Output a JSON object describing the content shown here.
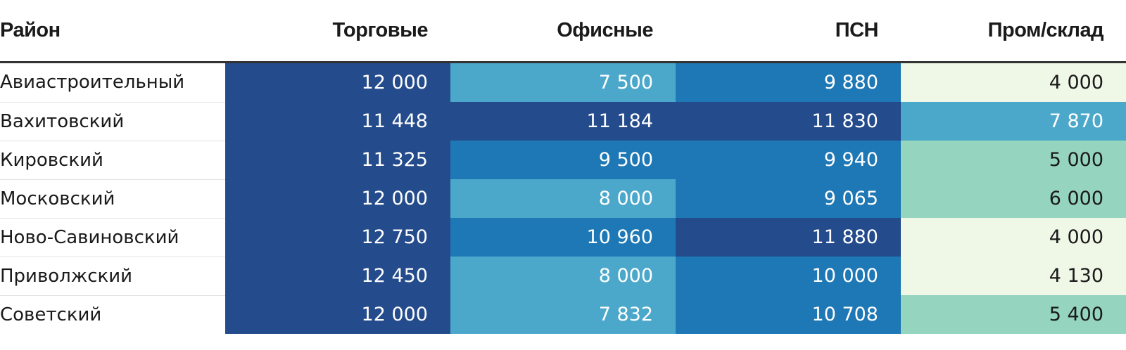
{
  "chart_data": {
    "type": "table",
    "columns": [
      "Район",
      "Торговые",
      "Офисные",
      "ПСН",
      "Пром/склад"
    ],
    "rows": [
      {
        "district": "Авиастроительный",
        "values": [
          "12 000",
          "7 500",
          "9 880",
          "4 000"
        ],
        "numbers": [
          12000,
          7500,
          9880,
          4000
        ]
      },
      {
        "district": "Вахитовский",
        "values": [
          "11 448",
          "11 184",
          "11 830",
          "7 870"
        ],
        "numbers": [
          11448,
          11184,
          11830,
          7870
        ]
      },
      {
        "district": "Кировский",
        "values": [
          "11 325",
          "9 500",
          "9 940",
          "5 000"
        ],
        "numbers": [
          11325,
          9500,
          9940,
          5000
        ]
      },
      {
        "district": "Московский",
        "values": [
          "12 000",
          "8 000",
          "9 065",
          "6 000"
        ],
        "numbers": [
          12000,
          8000,
          9065,
          6000
        ]
      },
      {
        "district": "Ново-Савиновский",
        "values": [
          "12 750",
          "10 960",
          "11 880",
          "4 000"
        ],
        "numbers": [
          12750,
          10960,
          11880,
          4000
        ]
      },
      {
        "district": "Приволжский",
        "values": [
          "12 450",
          "8 000",
          "10 000",
          "4 130"
        ],
        "numbers": [
          12450,
          8000,
          10000,
          4130
        ]
      },
      {
        "district": "Советский",
        "values": [
          "12 000",
          "7 832",
          "10 708",
          "5 400"
        ],
        "numbers": [
          12000,
          7832,
          10708,
          5400
        ]
      }
    ],
    "color_scale": {
      "thresholds": [
        5000,
        7000,
        9000,
        11000
      ],
      "colors": [
        "#eff8e6",
        "#95d4bf",
        "#4ca8cb",
        "#1e78b5",
        "#244b8c"
      ],
      "text_colors": [
        "#1a1a1a",
        "#1a1a1a",
        "#ffffff",
        "#ffffff",
        "#ffffff"
      ]
    }
  }
}
